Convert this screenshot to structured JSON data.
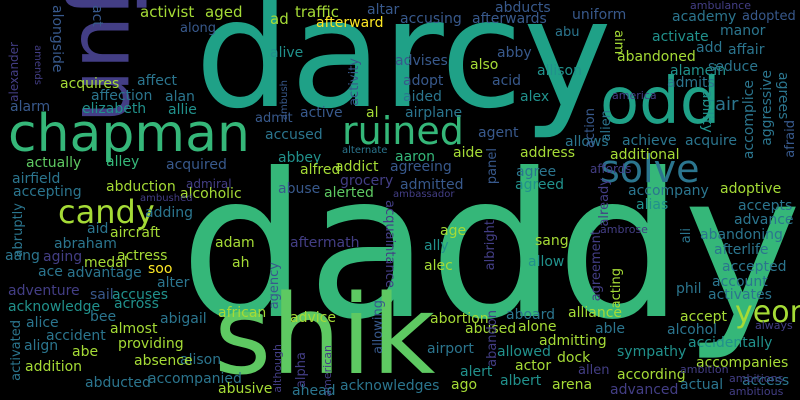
{
  "palette": {
    "background": "#000000",
    "p1": "#3b1f5f",
    "p2": "#433e85",
    "p3": "#38598c",
    "p4": "#2b758e",
    "p5": "#21918c",
    "p6": "#1fa187",
    "p7": "#35b779",
    "p8": "#5ec962",
    "p9": "#a5db36",
    "p10": "#fde725"
  },
  "words": [
    {
      "text": "daddy",
      "color": "#35b779"
    },
    {
      "text": "darcy",
      "color": "#1fa187"
    },
    {
      "text": "jun",
      "color": "#433e85"
    },
    {
      "text": "shik",
      "color": "#5ec962"
    },
    {
      "text": "chapman",
      "color": "#35b779"
    },
    {
      "text": "odd",
      "color": "#1fa187"
    },
    {
      "text": "ruined",
      "color": "#35b779"
    },
    {
      "text": "solve",
      "color": "#2b758e"
    },
    {
      "text": "candy",
      "color": "#a5db36"
    },
    {
      "text": "yeon",
      "color": "#a5db36"
    },
    {
      "text": "activist",
      "color": "#a5db36"
    },
    {
      "text": "aged",
      "color": "#a5db36"
    },
    {
      "text": "ad",
      "color": "#a5db36"
    },
    {
      "text": "traffic",
      "color": "#a5db36"
    },
    {
      "text": "altar",
      "color": "#38598c"
    },
    {
      "text": "abducts",
      "color": "#38598c"
    },
    {
      "text": "ambulance",
      "color": "#433e85"
    },
    {
      "text": "afterward",
      "color": "#fde725"
    },
    {
      "text": "accusing",
      "color": "#38598c"
    },
    {
      "text": "afterwards",
      "color": "#38598c"
    },
    {
      "text": "uniform",
      "color": "#38598c"
    },
    {
      "text": "academy",
      "color": "#2b758e"
    },
    {
      "text": "adopted",
      "color": "#38598c"
    },
    {
      "text": "alongside",
      "color": "#38598c"
    },
    {
      "text": "act",
      "color": "#38598c"
    },
    {
      "text": "along",
      "color": "#38598c"
    },
    {
      "text": "abby",
      "color": "#38598c"
    },
    {
      "text": "abu",
      "color": "#2b758e"
    },
    {
      "text": "activate",
      "color": "#21918c"
    },
    {
      "text": "add",
      "color": "#2b758e"
    },
    {
      "text": "affair",
      "color": "#2b758e"
    },
    {
      "text": "manor",
      "color": "#2b758e"
    },
    {
      "text": "alive",
      "color": "#21918c"
    },
    {
      "text": "advises",
      "color": "#38598c"
    },
    {
      "text": "also",
      "color": "#a5db36"
    },
    {
      "text": "allison",
      "color": "#21918c"
    },
    {
      "text": "abandoned",
      "color": "#a5db36"
    },
    {
      "text": "alamein",
      "color": "#21918c"
    },
    {
      "text": "seduce",
      "color": "#2b758e"
    },
    {
      "text": "acquires",
      "color": "#a5db36"
    },
    {
      "text": "affect",
      "color": "#2b758e"
    },
    {
      "text": "affection",
      "color": "#2b758e"
    },
    {
      "text": "alan",
      "color": "#2b758e"
    },
    {
      "text": "elizabeth",
      "color": "#21918c"
    },
    {
      "text": "allie",
      "color": "#21918c"
    },
    {
      "text": "alarm",
      "color": "#38598c"
    },
    {
      "text": "adopt",
      "color": "#38598c"
    },
    {
      "text": "acid",
      "color": "#38598c"
    },
    {
      "text": "aided",
      "color": "#2b758e"
    },
    {
      "text": "alex",
      "color": "#21918c"
    },
    {
      "text": "airplane",
      "color": "#2b758e"
    },
    {
      "text": "agent",
      "color": "#38598c"
    },
    {
      "text": "admits",
      "color": "#2b758e"
    },
    {
      "text": "america",
      "color": "#433e85"
    },
    {
      "text": "air",
      "color": "#2b758e"
    },
    {
      "text": "ability",
      "color": "#21918c"
    },
    {
      "text": "accomplice",
      "color": "#2b758e"
    },
    {
      "text": "aggressive",
      "color": "#2b758e"
    },
    {
      "text": "agrees",
      "color": "#2b758e"
    },
    {
      "text": "afraid",
      "color": "#38598c"
    },
    {
      "text": "active",
      "color": "#38598c"
    },
    {
      "text": "admit",
      "color": "#38598c"
    },
    {
      "text": "al",
      "color": "#a5db36"
    },
    {
      "text": "activity",
      "color": "#38598c"
    },
    {
      "text": "ambush",
      "color": "#38598c"
    },
    {
      "text": "accused",
      "color": "#2b758e"
    },
    {
      "text": "abbey",
      "color": "#21918c"
    },
    {
      "text": "aaron",
      "color": "#35b779"
    },
    {
      "text": "addict",
      "color": "#a5db36"
    },
    {
      "text": "alternate",
      "color": "#2b758e"
    },
    {
      "text": "agreeing",
      "color": "#38598c"
    },
    {
      "text": "aide",
      "color": "#a5db36"
    },
    {
      "text": "address",
      "color": "#a5db36"
    },
    {
      "text": "allows",
      "color": "#2b758e"
    },
    {
      "text": "achieve",
      "color": "#2b758e"
    },
    {
      "text": "acquire",
      "color": "#2b758e"
    },
    {
      "text": "action",
      "color": "#38598c"
    },
    {
      "text": "alien",
      "color": "#2b758e"
    },
    {
      "text": "additional",
      "color": "#a5db36"
    },
    {
      "text": "affords",
      "color": "#433e85"
    },
    {
      "text": "actually",
      "color": "#5ec962"
    },
    {
      "text": "alley",
      "color": "#35b779"
    },
    {
      "text": "acquired",
      "color": "#38598c"
    },
    {
      "text": "airfield",
      "color": "#2b758e"
    },
    {
      "text": "alfred",
      "color": "#a5db36"
    },
    {
      "text": "grocery",
      "color": "#433e85"
    },
    {
      "text": "panel",
      "color": "#38598c"
    },
    {
      "text": "agree",
      "color": "#2b758e"
    },
    {
      "text": "alerted",
      "color": "#5ec962"
    },
    {
      "text": "accepting",
      "color": "#2b758e"
    },
    {
      "text": "abduction",
      "color": "#a5db36"
    },
    {
      "text": "admiral",
      "color": "#433e85"
    },
    {
      "text": "alcoholic",
      "color": "#a5db36"
    },
    {
      "text": "abuse",
      "color": "#38598c"
    },
    {
      "text": "admitted",
      "color": "#38598c"
    },
    {
      "text": "agreed",
      "color": "#21918c"
    },
    {
      "text": "ambassador",
      "color": "#433e85"
    },
    {
      "text": "accompany",
      "color": "#2b758e"
    },
    {
      "text": "adoptive",
      "color": "#a5db36"
    },
    {
      "text": "ambushed",
      "color": "#433e85"
    },
    {
      "text": "already",
      "color": "#433e85"
    },
    {
      "text": "alias",
      "color": "#21918c"
    },
    {
      "text": "accepts",
      "color": "#2b758e"
    },
    {
      "text": "advance",
      "color": "#2b758e"
    },
    {
      "text": "abruptly",
      "color": "#2b758e"
    },
    {
      "text": "adding",
      "color": "#2b758e"
    },
    {
      "text": "aid",
      "color": "#2b758e"
    },
    {
      "text": "aircraft",
      "color": "#a5db36"
    },
    {
      "text": "abraham",
      "color": "#2b758e"
    },
    {
      "text": "aang",
      "color": "#2b758e"
    },
    {
      "text": "aging",
      "color": "#433e85"
    },
    {
      "text": "adam",
      "color": "#a5db36"
    },
    {
      "text": "aftermath",
      "color": "#433e85"
    },
    {
      "text": "acquaintance",
      "color": "#433e85"
    },
    {
      "text": "age",
      "color": "#a5db36"
    },
    {
      "text": "ally",
      "color": "#21918c"
    },
    {
      "text": "albright",
      "color": "#433e85"
    },
    {
      "text": "sang",
      "color": "#a5db36"
    },
    {
      "text": "ali",
      "color": "#2b758e"
    },
    {
      "text": "abandoning",
      "color": "#2b758e"
    },
    {
      "text": "afterlife",
      "color": "#2b758e"
    },
    {
      "text": "medal",
      "color": "#a5db36"
    },
    {
      "text": "actress",
      "color": "#a5db36"
    },
    {
      "text": "ah",
      "color": "#a5db36"
    },
    {
      "text": "alec",
      "color": "#a5db36"
    },
    {
      "text": "allow",
      "color": "#21918c"
    },
    {
      "text": "ace",
      "color": "#2b758e"
    },
    {
      "text": "advantage",
      "color": "#2b758e"
    },
    {
      "text": "soo",
      "color": "#fde725"
    },
    {
      "text": "alter",
      "color": "#2b758e"
    },
    {
      "text": "agency",
      "color": "#38598c"
    },
    {
      "text": "accepted",
      "color": "#2b758e"
    },
    {
      "text": "account",
      "color": "#2b758e"
    },
    {
      "text": "activates",
      "color": "#2b758e"
    },
    {
      "text": "acknowledge",
      "color": "#21918c"
    },
    {
      "text": "adventure",
      "color": "#433e85"
    },
    {
      "text": "sail",
      "color": "#38598c"
    },
    {
      "text": "accuses",
      "color": "#21918c"
    },
    {
      "text": "across",
      "color": "#21918c"
    },
    {
      "text": "agreement",
      "color": "#433e85"
    },
    {
      "text": "acting",
      "color": "#a5db36"
    },
    {
      "text": "phil",
      "color": "#2b758e"
    },
    {
      "text": "african",
      "color": "#a5db36"
    },
    {
      "text": "bee",
      "color": "#2b758e"
    },
    {
      "text": "abigail",
      "color": "#2b758e"
    },
    {
      "text": "advice",
      "color": "#a5db36"
    },
    {
      "text": "abortion",
      "color": "#a5db36"
    },
    {
      "text": "aboard",
      "color": "#2b758e"
    },
    {
      "text": "alliance",
      "color": "#a5db36"
    },
    {
      "text": "accept",
      "color": "#a5db36"
    },
    {
      "text": "always",
      "color": "#433e85"
    },
    {
      "text": "alice",
      "color": "#2b758e"
    },
    {
      "text": "align",
      "color": "#2b758e"
    },
    {
      "text": "accident",
      "color": "#2b758e"
    },
    {
      "text": "almost",
      "color": "#a5db36"
    },
    {
      "text": "abused",
      "color": "#a5db36"
    },
    {
      "text": "alone",
      "color": "#a5db36"
    },
    {
      "text": "able",
      "color": "#2b758e"
    },
    {
      "text": "alcohol",
      "color": "#2b758e"
    },
    {
      "text": "accidentally",
      "color": "#21918c"
    },
    {
      "text": "activated",
      "color": "#2b758e"
    },
    {
      "text": "abe",
      "color": "#a5db36"
    },
    {
      "text": "providing",
      "color": "#a5db36"
    },
    {
      "text": "alison",
      "color": "#2b758e"
    },
    {
      "text": "allowing",
      "color": "#38598c"
    },
    {
      "text": "admitting",
      "color": "#a5db36"
    },
    {
      "text": "abandon",
      "color": "#433e85"
    },
    {
      "text": "airport",
      "color": "#2b758e"
    },
    {
      "text": "allowed",
      "color": "#21918c"
    },
    {
      "text": "dock",
      "color": "#a5db36"
    },
    {
      "text": "sympathy",
      "color": "#21918c"
    },
    {
      "text": "accompanies",
      "color": "#a5db36"
    },
    {
      "text": "addition",
      "color": "#a5db36"
    },
    {
      "text": "absence",
      "color": "#a5db36"
    },
    {
      "text": "although",
      "color": "#433e85"
    },
    {
      "text": "alpha",
      "color": "#433e85"
    },
    {
      "text": "american",
      "color": "#433e85"
    },
    {
      "text": "alert",
      "color": "#21918c"
    },
    {
      "text": "actor",
      "color": "#a5db36"
    },
    {
      "text": "allen",
      "color": "#433e85"
    },
    {
      "text": "according",
      "color": "#a5db36"
    },
    {
      "text": "ambition",
      "color": "#433e85"
    },
    {
      "text": "abducted",
      "color": "#2b758e"
    },
    {
      "text": "accompanied",
      "color": "#2b758e"
    },
    {
      "text": "abusive",
      "color": "#a5db36"
    },
    {
      "text": "ahead",
      "color": "#2b758e"
    },
    {
      "text": "acknowledges",
      "color": "#2b758e"
    },
    {
      "text": "ago",
      "color": "#a5db36"
    },
    {
      "text": "albert",
      "color": "#21918c"
    },
    {
      "text": "arena",
      "color": "#a5db36"
    },
    {
      "text": "advanced",
      "color": "#433e85"
    },
    {
      "text": "actual",
      "color": "#2b758e"
    },
    {
      "text": "access",
      "color": "#2b758e"
    },
    {
      "text": "ambitions",
      "color": "#433e85"
    },
    {
      "text": "ambitious",
      "color": "#433e85"
    },
    {
      "text": "ambrose",
      "color": "#433e85"
    },
    {
      "text": "amends",
      "color": "#433e85"
    },
    {
      "text": "alexander",
      "color": "#433e85"
    },
    {
      "text": "aim",
      "color": "#a5db36"
    }
  ]
}
